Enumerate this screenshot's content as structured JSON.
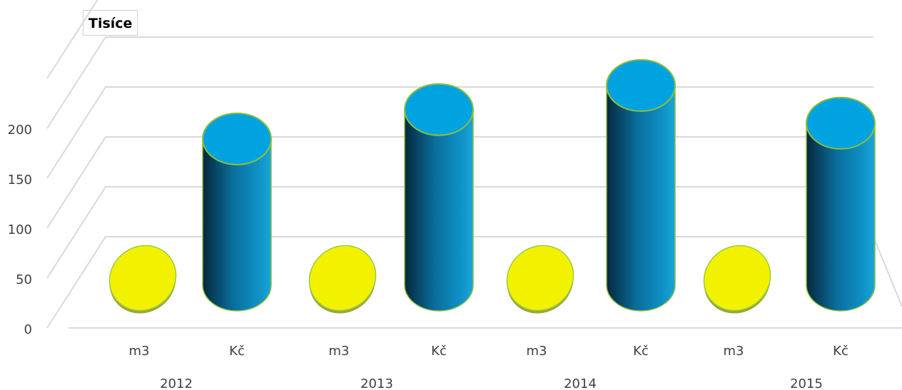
{
  "unit_label": "Tisíce",
  "chart_data": {
    "type": "bar",
    "style": "3d-cylinder",
    "title": "",
    "xlabel": "",
    "ylabel": "",
    "ylim": [
      0,
      250
    ],
    "yticks": [
      "0",
      "50",
      "100",
      "150",
      "200"
    ],
    "ytick_values": [
      0,
      50,
      100,
      150,
      200
    ],
    "grid": true,
    "legend": "none",
    "groups": [
      {
        "label": "2012",
        "bars": [
          {
            "category": "m3",
            "value": 0,
            "color": "#f2f200"
          },
          {
            "category": "Kč",
            "value": 145,
            "color": "#00a3e0"
          }
        ]
      },
      {
        "label": "2013",
        "bars": [
          {
            "category": "m3",
            "value": 0,
            "color": "#f2f200"
          },
          {
            "category": "Kč",
            "value": 173,
            "color": "#00a3e0"
          }
        ]
      },
      {
        "label": "2014",
        "bars": [
          {
            "category": "m3",
            "value": 0,
            "color": "#f2f200"
          },
          {
            "category": "Kč",
            "value": 196,
            "color": "#00a3e0"
          }
        ]
      },
      {
        "label": "2015",
        "bars": [
          {
            "category": "m3",
            "value": 0,
            "color": "#f2f200"
          },
          {
            "category": "Kč",
            "value": 160,
            "color": "#00a3e0"
          }
        ]
      }
    ]
  }
}
